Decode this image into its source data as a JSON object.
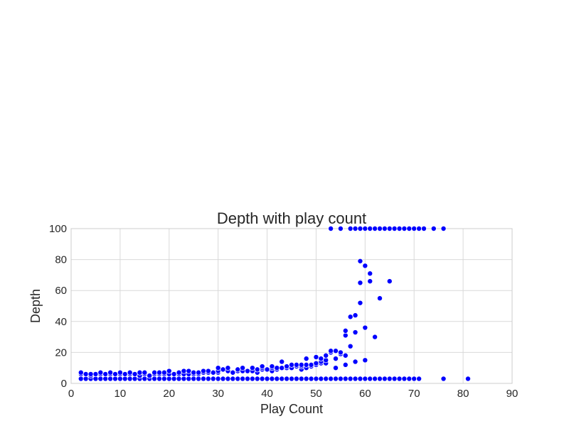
{
  "chart_data": {
    "type": "scatter",
    "title": "Depth with play count",
    "xlabel": "Play Count",
    "ylabel": "Depth",
    "xlim": [
      0,
      90
    ],
    "ylim": [
      0,
      100
    ],
    "xticks": [
      "0",
      "10",
      "20",
      "30",
      "40",
      "50",
      "60",
      "70",
      "80",
      "90"
    ],
    "yticks": [
      "0",
      "20",
      "40",
      "60",
      "80",
      "100"
    ],
    "grid": true,
    "marker_color": "#0000ff",
    "series": [
      {
        "points": [
          [
            2,
            3
          ],
          [
            3,
            3
          ],
          [
            4,
            3
          ],
          [
            5,
            3
          ],
          [
            6,
            3
          ],
          [
            7,
            3
          ],
          [
            8,
            3
          ],
          [
            9,
            3
          ],
          [
            10,
            3
          ],
          [
            11,
            3
          ],
          [
            12,
            3
          ],
          [
            13,
            3
          ],
          [
            14,
            3
          ],
          [
            15,
            3
          ],
          [
            16,
            3
          ],
          [
            17,
            3
          ],
          [
            18,
            3
          ],
          [
            19,
            3
          ],
          [
            20,
            3
          ],
          [
            21,
            3
          ],
          [
            22,
            3
          ],
          [
            23,
            3
          ],
          [
            24,
            3
          ],
          [
            25,
            3
          ],
          [
            26,
            3
          ],
          [
            27,
            3
          ],
          [
            28,
            3
          ],
          [
            29,
            3
          ],
          [
            30,
            3
          ],
          [
            31,
            3
          ],
          [
            32,
            3
          ],
          [
            33,
            3
          ],
          [
            34,
            3
          ],
          [
            35,
            3
          ],
          [
            36,
            3
          ],
          [
            37,
            3
          ],
          [
            38,
            3
          ],
          [
            39,
            3
          ],
          [
            40,
            3
          ],
          [
            41,
            3
          ],
          [
            42,
            3
          ],
          [
            43,
            3
          ],
          [
            44,
            3
          ],
          [
            45,
            3
          ],
          [
            46,
            3
          ],
          [
            47,
            3
          ],
          [
            48,
            3
          ],
          [
            49,
            3
          ],
          [
            50,
            3
          ],
          [
            51,
            3
          ],
          [
            52,
            3
          ],
          [
            53,
            3
          ],
          [
            54,
            3
          ],
          [
            55,
            3
          ],
          [
            56,
            3
          ],
          [
            57,
            3
          ],
          [
            58,
            3
          ],
          [
            59,
            3
          ],
          [
            60,
            3
          ],
          [
            61,
            3
          ],
          [
            62,
            3
          ],
          [
            63,
            3
          ],
          [
            64,
            3
          ],
          [
            65,
            3
          ],
          [
            66,
            3
          ],
          [
            67,
            3
          ],
          [
            68,
            3
          ],
          [
            69,
            3
          ],
          [
            70,
            3
          ],
          [
            71,
            3
          ],
          [
            76,
            3
          ],
          [
            81,
            3
          ],
          [
            2,
            6
          ],
          [
            3,
            6
          ],
          [
            4,
            5
          ],
          [
            5,
            6
          ],
          [
            6,
            6
          ],
          [
            7,
            6
          ],
          [
            8,
            6
          ],
          [
            9,
            6
          ],
          [
            10,
            6
          ],
          [
            11,
            6
          ],
          [
            12,
            6
          ],
          [
            13,
            6
          ],
          [
            14,
            5
          ],
          [
            15,
            6
          ],
          [
            16,
            5
          ],
          [
            17,
            6
          ],
          [
            18,
            6
          ],
          [
            19,
            6
          ],
          [
            20,
            6
          ],
          [
            21,
            6
          ],
          [
            22,
            6
          ],
          [
            23,
            6
          ],
          [
            24,
            6
          ],
          [
            25,
            6
          ],
          [
            26,
            6
          ],
          [
            27,
            7
          ],
          [
            28,
            7
          ],
          [
            29,
            7
          ],
          [
            30,
            7
          ],
          [
            2,
            7
          ],
          [
            4,
            6
          ],
          [
            6,
            7
          ],
          [
            8,
            7
          ],
          [
            10,
            7
          ],
          [
            12,
            7
          ],
          [
            14,
            7
          ],
          [
            15,
            7
          ],
          [
            17,
            7
          ],
          [
            18,
            7
          ],
          [
            19,
            7
          ],
          [
            20,
            8
          ],
          [
            22,
            7
          ],
          [
            23,
            8
          ],
          [
            24,
            8
          ],
          [
            25,
            7
          ],
          [
            26,
            7
          ],
          [
            27,
            8
          ],
          [
            28,
            8
          ],
          [
            29,
            7
          ],
          [
            30,
            8
          ],
          [
            30,
            10
          ],
          [
            31,
            9
          ],
          [
            32,
            8
          ],
          [
            32,
            10
          ],
          [
            33,
            7
          ],
          [
            34,
            8
          ],
          [
            34,
            9
          ],
          [
            35,
            8
          ],
          [
            35,
            10
          ],
          [
            36,
            8
          ],
          [
            37,
            8
          ],
          [
            37,
            10
          ],
          [
            38,
            7
          ],
          [
            38,
            9
          ],
          [
            39,
            9
          ],
          [
            39,
            10
          ],
          [
            39,
            11
          ],
          [
            40,
            9
          ],
          [
            41,
            8
          ],
          [
            41,
            10
          ],
          [
            41,
            11
          ],
          [
            42,
            9
          ],
          [
            42,
            10
          ],
          [
            43,
            10
          ],
          [
            43,
            14
          ],
          [
            44,
            10
          ],
          [
            44,
            11
          ],
          [
            45,
            10
          ],
          [
            45,
            12
          ],
          [
            46,
            11
          ],
          [
            46,
            12
          ],
          [
            47,
            9
          ],
          [
            47,
            11
          ],
          [
            47,
            12
          ],
          [
            48,
            10
          ],
          [
            48,
            12
          ],
          [
            48,
            16
          ],
          [
            49,
            11
          ],
          [
            49,
            12
          ],
          [
            50,
            12
          ],
          [
            50,
            13
          ],
          [
            50,
            17
          ],
          [
            51,
            13
          ],
          [
            51,
            14
          ],
          [
            51,
            16
          ],
          [
            52,
            13
          ],
          [
            52,
            15
          ],
          [
            52,
            18
          ],
          [
            53,
            20
          ],
          [
            53,
            21
          ],
          [
            54,
            10
          ],
          [
            54,
            16
          ],
          [
            54,
            21
          ],
          [
            55,
            19
          ],
          [
            55,
            20
          ],
          [
            56,
            12
          ],
          [
            56,
            18
          ],
          [
            56,
            31
          ],
          [
            56,
            34
          ],
          [
            57,
            24
          ],
          [
            57,
            43
          ],
          [
            58,
            14
          ],
          [
            58,
            33
          ],
          [
            58,
            44
          ],
          [
            59,
            52
          ],
          [
            59,
            65
          ],
          [
            59,
            79
          ],
          [
            60,
            15
          ],
          [
            60,
            36
          ],
          [
            60,
            76
          ],
          [
            61,
            66
          ],
          [
            61,
            71
          ],
          [
            62,
            30
          ],
          [
            63,
            55
          ],
          [
            65,
            66
          ],
          [
            53,
            100
          ],
          [
            55,
            100
          ],
          [
            57,
            100
          ],
          [
            58,
            100
          ],
          [
            59,
            100
          ],
          [
            60,
            100
          ],
          [
            61,
            100
          ],
          [
            62,
            100
          ],
          [
            63,
            100
          ],
          [
            64,
            100
          ],
          [
            65,
            100
          ],
          [
            66,
            100
          ],
          [
            67,
            100
          ],
          [
            68,
            100
          ],
          [
            69,
            100
          ],
          [
            70,
            100
          ],
          [
            71,
            100
          ],
          [
            72,
            100
          ],
          [
            74,
            100
          ],
          [
            76,
            100
          ]
        ]
      }
    ]
  }
}
